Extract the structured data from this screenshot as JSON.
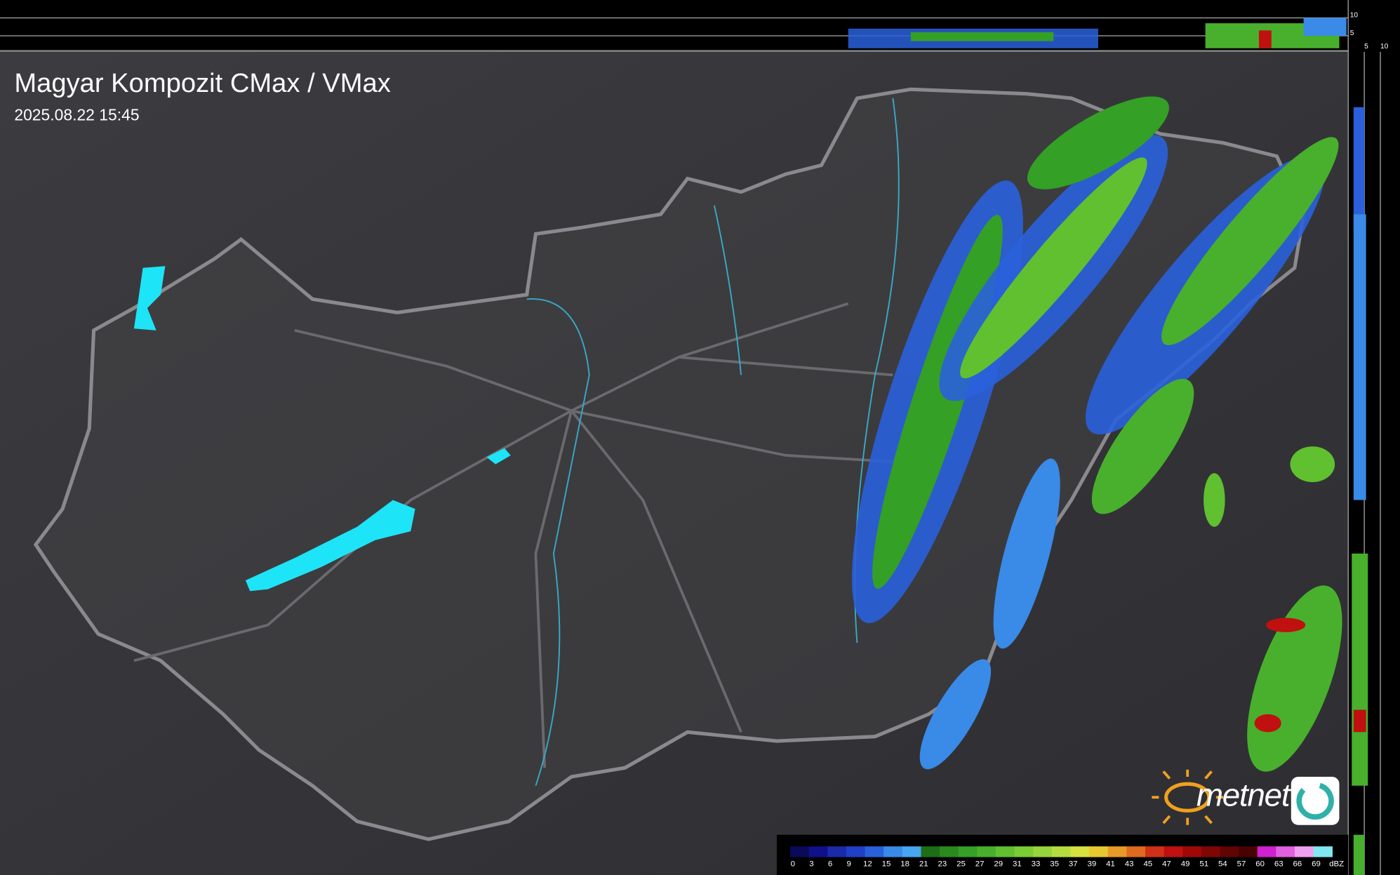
{
  "header": {
    "title": "Magyar Kompozit CMax / VMax",
    "timestamp": "2025.08.22 15:45"
  },
  "top_profile": {
    "labels": [
      "10",
      "5"
    ]
  },
  "side_profile": {
    "labels": [
      "5",
      "10"
    ]
  },
  "logo": {
    "text": "metnet"
  },
  "legend": {
    "ticks": [
      "0",
      "3",
      "6",
      "9",
      "12",
      "15",
      "18",
      "21",
      "23",
      "25",
      "27",
      "29",
      "31",
      "33",
      "35",
      "37",
      "39",
      "41",
      "43",
      "45",
      "47",
      "49",
      "51",
      "54",
      "57",
      "60",
      "63",
      "66",
      "69"
    ],
    "unit": "dBZ",
    "colors": [
      "#0a0a5a",
      "#10108a",
      "#1a2aa8",
      "#2040c8",
      "#2a60dc",
      "#3a8ae8",
      "#46a6f0",
      "#1e6e18",
      "#2a8a1e",
      "#34a026",
      "#48b02c",
      "#60c030",
      "#7ccc36",
      "#98d43c",
      "#b4dc40",
      "#d8e040",
      "#e8c830",
      "#e89a28",
      "#e06a20",
      "#d03018",
      "#c01010",
      "#a00808",
      "#800606",
      "#600404",
      "#480202",
      "#d020d0",
      "#e060e0",
      "#f0a0f0",
      "#80e8f0"
    ]
  }
}
